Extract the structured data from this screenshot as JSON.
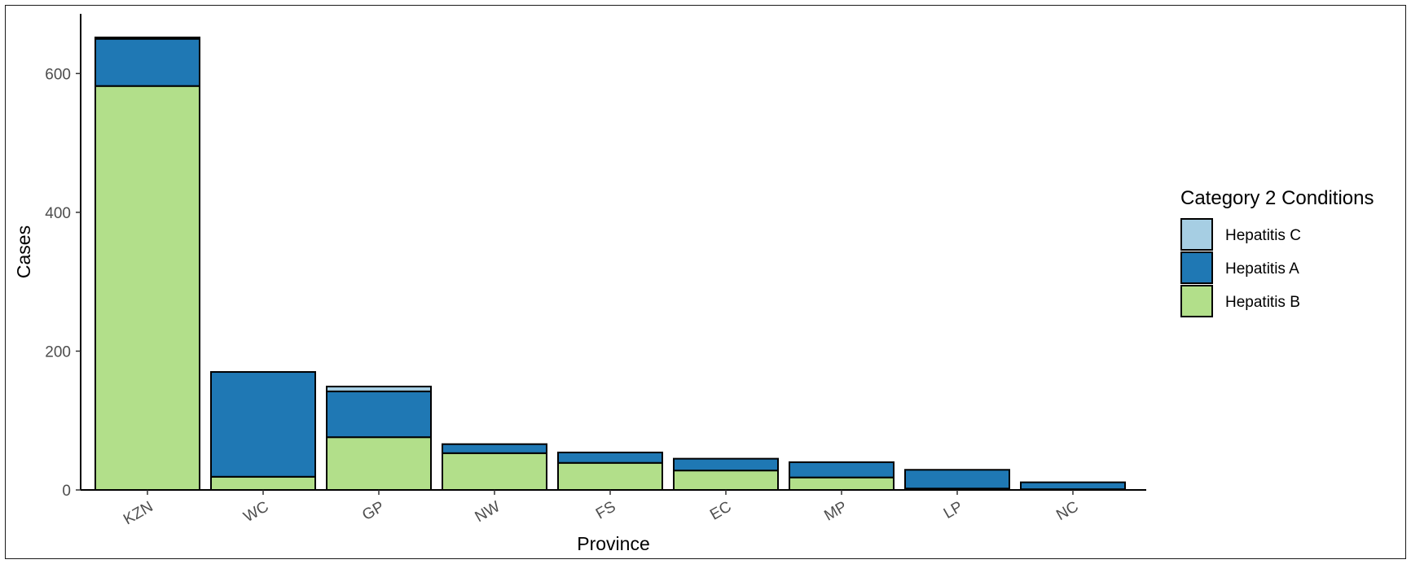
{
  "chart_data": {
    "type": "bar",
    "stacked": true,
    "title": "",
    "xlabel": "Province",
    "ylabel": "Cases",
    "categories": [
      "KZN",
      "WC",
      "GP",
      "NW",
      "FS",
      "EC",
      "MP",
      "LP",
      "NC"
    ],
    "series": [
      {
        "name": "Hepatitis B",
        "color": "#b2df8a",
        "values": [
          582,
          19,
          76,
          53,
          39,
          28,
          18,
          2,
          1
        ]
      },
      {
        "name": "Hepatitis A",
        "color": "#1f78b4",
        "values": [
          68,
          151,
          66,
          13,
          15,
          17,
          22,
          27,
          10
        ]
      },
      {
        "name": "Hepatitis C",
        "color": "#a6cee3",
        "values": [
          2,
          0,
          7,
          0,
          0,
          0,
          0,
          0,
          0
        ]
      }
    ],
    "ylim": [
      0,
      686
    ],
    "yticks": [
      0,
      200,
      400,
      600
    ],
    "grid": false,
    "legend": {
      "title": "Category 2 Conditions",
      "placement": "right",
      "entries": [
        {
          "name": "Hepatitis C",
          "color": "#a6cee3"
        },
        {
          "name": "Hepatitis A",
          "color": "#1f78b4"
        },
        {
          "name": "Hepatitis B",
          "color": "#b2df8a"
        }
      ]
    }
  }
}
